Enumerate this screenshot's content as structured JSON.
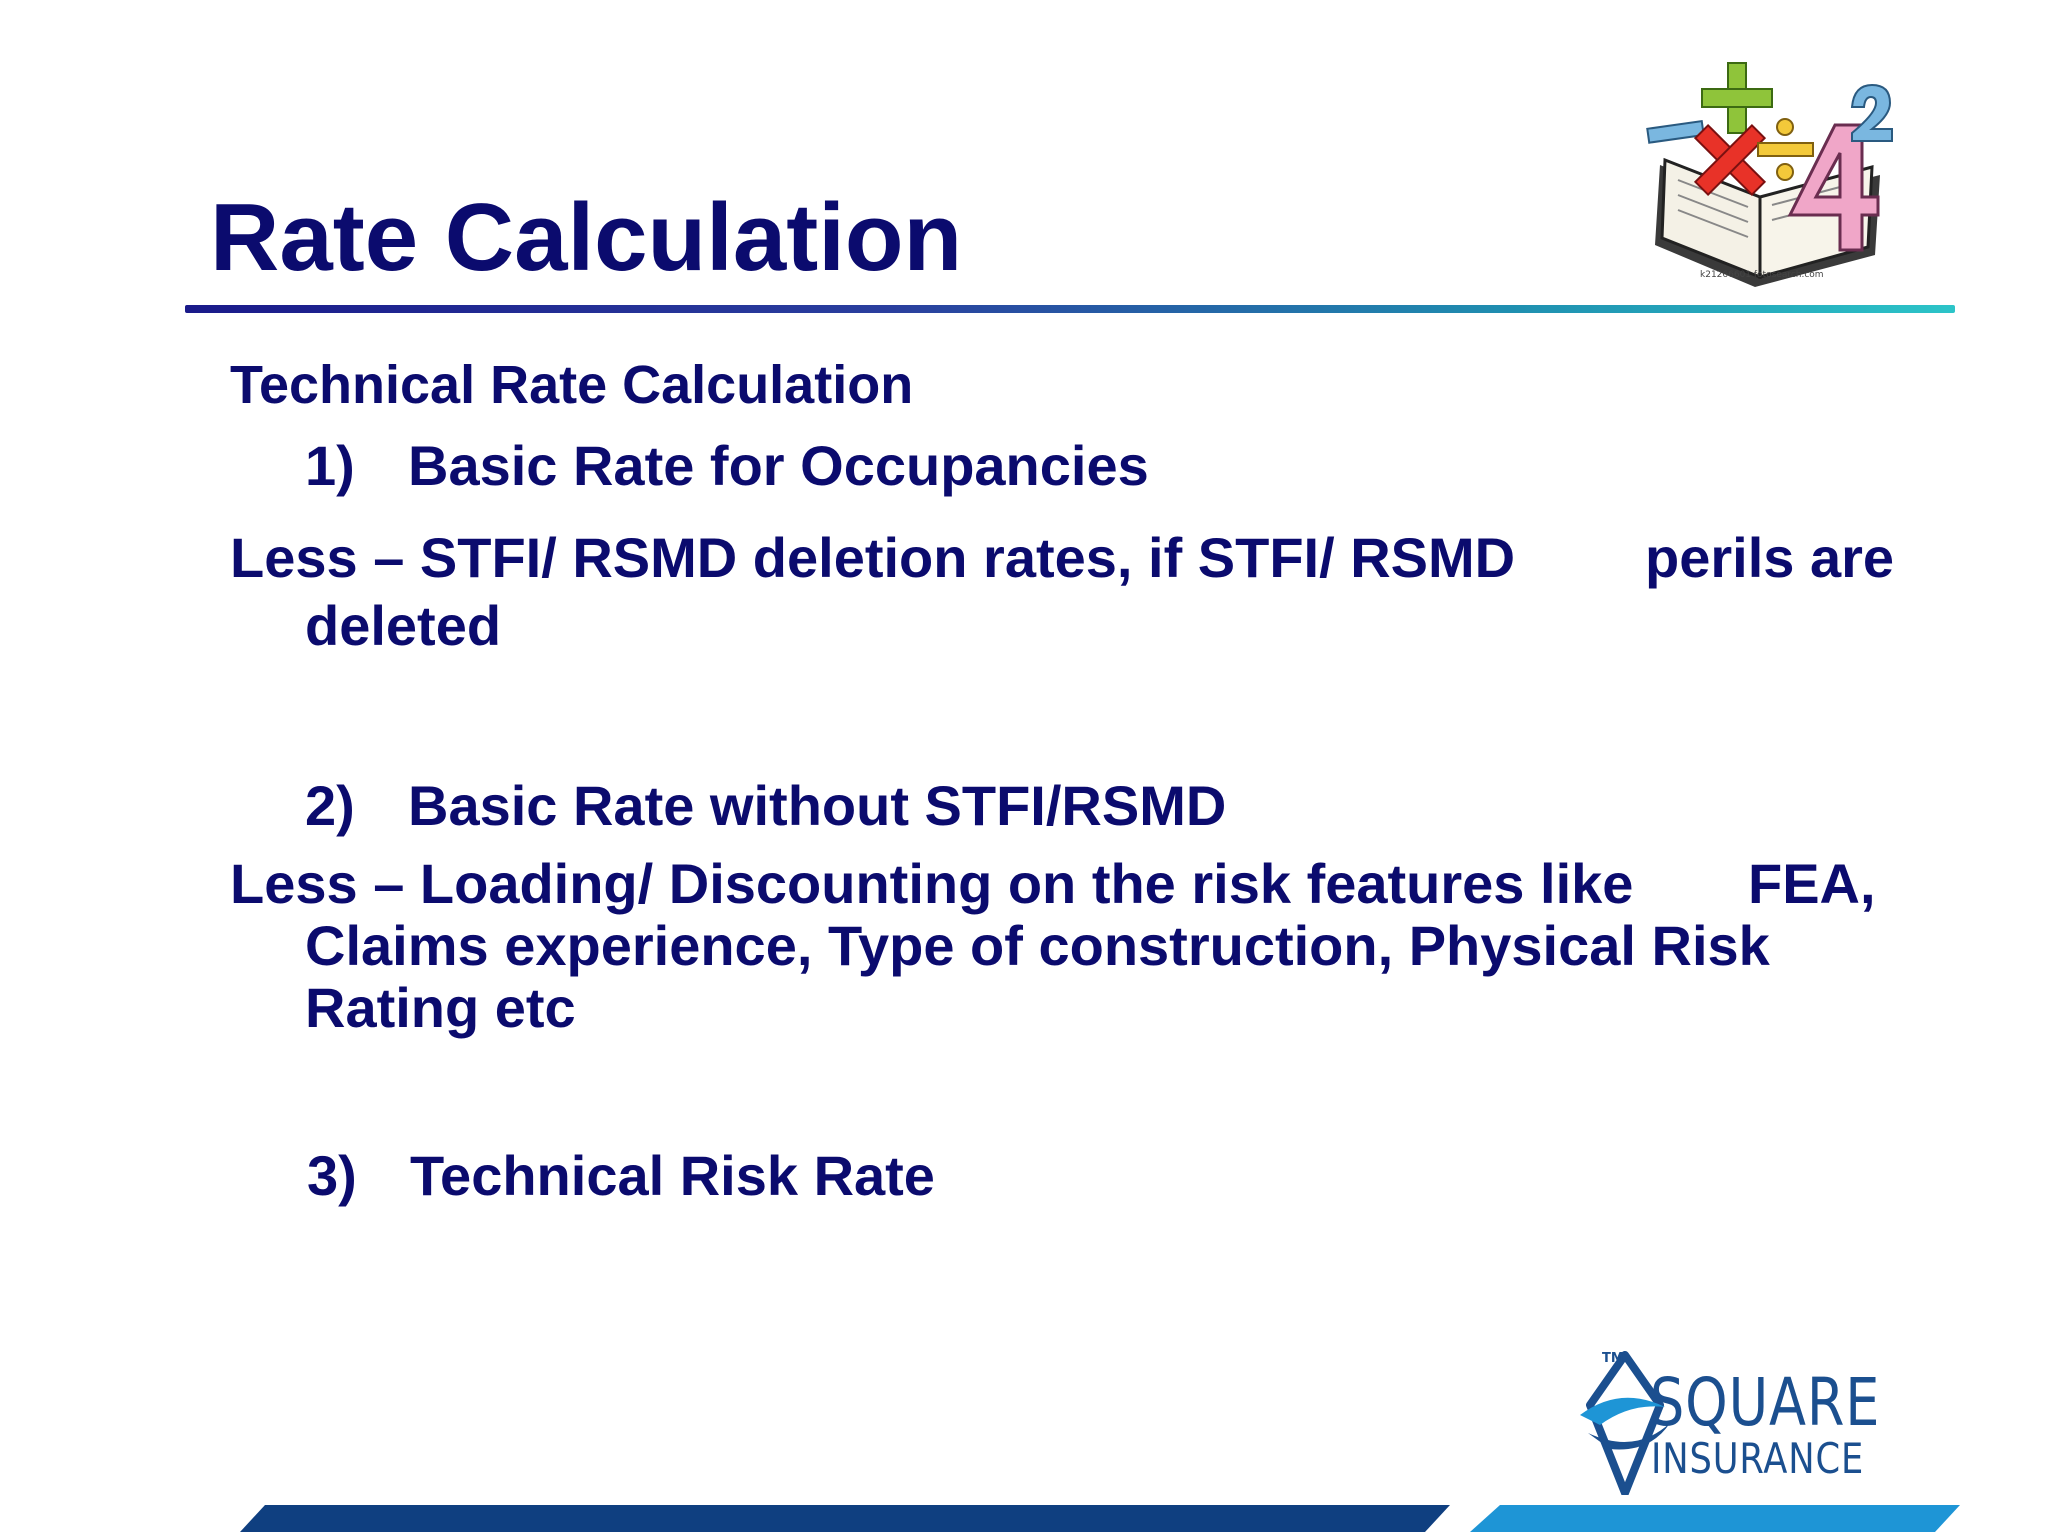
{
  "slide": {
    "title": "Rate Calculation",
    "section_heading": "Technical Rate Calculation",
    "item1": {
      "number": "1)",
      "text": "Basic Rate for Occupancies"
    },
    "less1": {
      "line1_left": "Less – STFI/ RSMD deletion rates, if STFI/ RSMD",
      "line1_right": "perils are",
      "line2": "deleted"
    },
    "item2": {
      "number": "2)",
      "text": "Basic Rate without STFI/RSMD"
    },
    "less2": {
      "line1_left": "Less – Loading/ Discounting on the risk features like",
      "line1_right": "FEA,",
      "line2": "Claims experience, Type of construction, Physical Risk",
      "line3": "Rating etc"
    },
    "item3": {
      "number": "3)",
      "text": "Technical Risk Rate"
    }
  },
  "clipart": {
    "icon": "math-book-icon",
    "caption": "k21266601 fotosearch.com"
  },
  "logo": {
    "icon": "square-insurance-diamond-icon",
    "tm": "TM",
    "name_line1": "SQUARE",
    "name_line2": "INSURANCE"
  },
  "colors": {
    "text": "#0b0b6e",
    "logo_blue": "#1b4f8f",
    "footer_dark": "#0f3f80",
    "footer_light": "#1e95d6"
  }
}
